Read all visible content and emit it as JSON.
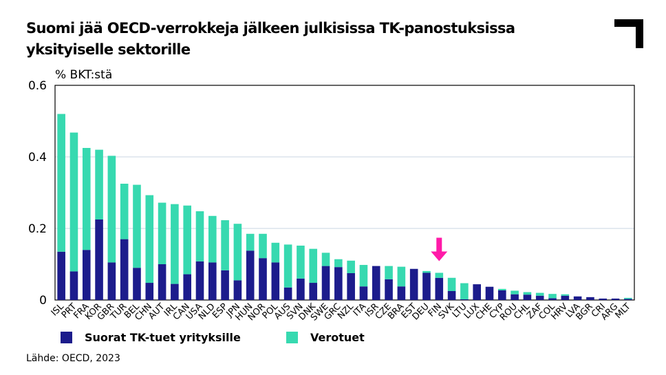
{
  "title": "Suomi jää OECD-verrokkeja jälkeen julkisissa TK-panostuksissa yksityiselle sektorille",
  "unit_label": "% BKT:stä",
  "source": "Lähde: OECD, 2023",
  "logo_icon": "corner-bracket-logo",
  "highlight_icon": "arrow-down-icon",
  "colors": {
    "direct": "#1c1c8c",
    "tax": "#37d9b0",
    "arrow": "#ff1aa8",
    "grid": "#c9d6e2",
    "axis": "#000000"
  },
  "chart_data": {
    "type": "bar",
    "stacked": true,
    "title": "Suomi jää OECD-verrokkeja jälkeen julkisissa TK-panostuksissa yksityiselle sektorille",
    "ylabel": "% BKT:stä",
    "xlabel": "",
    "ylim": [
      0,
      0.6
    ],
    "yticks": [
      "0",
      "0.2",
      "0.4",
      "0.6"
    ],
    "ytick_values": [
      0,
      0.2,
      0.4,
      0.6
    ],
    "grid": true,
    "legend_position": "bottom",
    "highlight": "FIN",
    "categories": [
      "ISL",
      "PRT",
      "FRA",
      "KOR",
      "GBR",
      "TUR",
      "BEL",
      "CHN",
      "AUT",
      "IRL",
      "CAN",
      "USA",
      "NLD",
      "ESP",
      "JPN",
      "HUN",
      "NOR",
      "POL",
      "AUS",
      "SVN",
      "DNK",
      "SWE",
      "GRC",
      "NZL",
      "ITA",
      "ISR",
      "CZE",
      "BRA",
      "EST",
      "DEU",
      "FIN",
      "SVK",
      "LTU",
      "LUX",
      "CHE",
      "CYP",
      "ROU",
      "CHL",
      "ZAF",
      "COL",
      "HRV",
      "LVA",
      "BGR",
      "CRI",
      "ARG",
      "MLT"
    ],
    "series": [
      {
        "name": "Suorat TK-tuet yrityksille",
        "values": [
          0.135,
          0.08,
          0.14,
          0.225,
          0.105,
          0.17,
          0.09,
          0.048,
          0.1,
          0.045,
          0.072,
          0.108,
          0.105,
          0.083,
          0.055,
          0.138,
          0.117,
          0.105,
          0.035,
          0.06,
          0.048,
          0.095,
          0.092,
          0.075,
          0.038,
          0.095,
          0.058,
          0.038,
          0.087,
          0.076,
          0.062,
          0.025,
          0.002,
          0.044,
          0.037,
          0.027,
          0.016,
          0.015,
          0.012,
          0.005,
          0.012,
          0.01,
          0.008,
          0.004,
          0.004,
          0.003
        ]
      },
      {
        "name": "Verotuet",
        "values": [
          0.385,
          0.388,
          0.285,
          0.195,
          0.298,
          0.155,
          0.232,
          0.245,
          0.172,
          0.223,
          0.192,
          0.14,
          0.13,
          0.14,
          0.158,
          0.047,
          0.068,
          0.055,
          0.12,
          0.092,
          0.095,
          0.037,
          0.022,
          0.035,
          0.06,
          0.0,
          0.037,
          0.055,
          0.0,
          0.005,
          0.014,
          0.037,
          0.045,
          0.0,
          0.0,
          0.004,
          0.01,
          0.007,
          0.008,
          0.012,
          0.004,
          0.0,
          0.0,
          0.0,
          0.0,
          0.003
        ]
      }
    ]
  }
}
